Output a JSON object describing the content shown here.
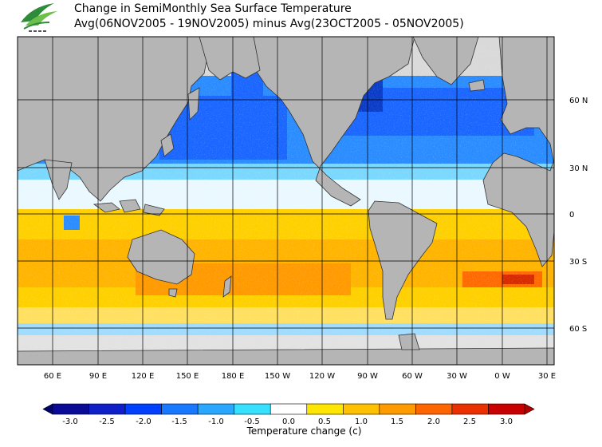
{
  "header": {
    "title_line1": "Change in SemiMonthly Sea Surface Temperature",
    "title_line2": "Avg(06NOV2005 - 19NOV2005) minus Avg(23OCT2005 - 05NOV2005)"
  },
  "map": {
    "lon_labels": [
      "60 E",
      "90 E",
      "120 E",
      "150 E",
      "180 E",
      "150 W",
      "120 W",
      "90 W",
      "60 W",
      "30 W",
      "0 W",
      "30 E"
    ],
    "lat_labels": [
      "60 N",
      "30 N",
      "0",
      "30 S",
      "60 S"
    ]
  },
  "colorbar": {
    "title": "Temperature change  (c)",
    "tick_labels": [
      "-3.0",
      "-2.5",
      "-2.0",
      "-1.5",
      "-1.0",
      "-0.5",
      "0.0",
      "0.5",
      "1.0",
      "1.5",
      "2.0",
      "2.5",
      "3.0"
    ],
    "colors": [
      "#0a0a96",
      "#1020c8",
      "#0040ff",
      "#1878ff",
      "#2aa8ff",
      "#38e0ff",
      "#ffffff",
      "#ffe600",
      "#ffc000",
      "#ff9a00",
      "#ff6600",
      "#e83000",
      "#c80000"
    ],
    "low_color": "#000070",
    "high_color": "#b00000"
  }
}
